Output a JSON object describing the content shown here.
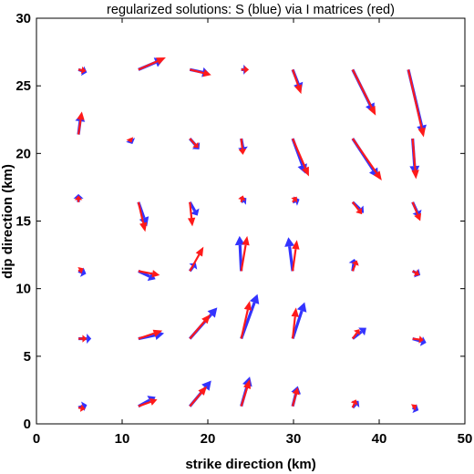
{
  "chart_data": {
    "type": "quiver",
    "title": "regularized solutions: S (blue) via I matrices (red)",
    "xlabel": "strike direction (km)",
    "ylabel": "dip direction (km)",
    "xlim": [
      0,
      50
    ],
    "ylim": [
      0,
      30
    ],
    "xticks": [
      "0",
      "10",
      "20",
      "30",
      "40",
      "50"
    ],
    "yticks": [
      "0",
      "5",
      "10",
      "15",
      "20",
      "25",
      "30"
    ],
    "grid": false,
    "series": [
      {
        "name": "S",
        "color": "#3333ff",
        "vectors": [
          {
            "x": 4.9,
            "y": 1.2,
            "u": 1.0,
            "v": 0.2
          },
          {
            "x": 11.9,
            "y": 1.3,
            "u": 2.0,
            "v": 0.7
          },
          {
            "x": 17.9,
            "y": 1.3,
            "u": 2.5,
            "v": 1.9
          },
          {
            "x": 23.9,
            "y": 1.3,
            "u": 1.0,
            "v": 2.2
          },
          {
            "x": 29.9,
            "y": 1.3,
            "u": 0.6,
            "v": 1.5
          },
          {
            "x": 36.9,
            "y": 1.2,
            "u": 0.7,
            "v": 0.5
          },
          {
            "x": 43.9,
            "y": 1.2,
            "u": 0.7,
            "v": -0.2
          },
          {
            "x": 4.9,
            "y": 6.3,
            "u": 1.5,
            "v": 0.0
          },
          {
            "x": 11.9,
            "y": 6.3,
            "u": 3.0,
            "v": 0.4
          },
          {
            "x": 17.9,
            "y": 6.3,
            "u": 3.2,
            "v": 2.3
          },
          {
            "x": 23.9,
            "y": 6.3,
            "u": 1.9,
            "v": 3.3
          },
          {
            "x": 29.9,
            "y": 6.3,
            "u": 1.4,
            "v": 2.7
          },
          {
            "x": 36.9,
            "y": 6.3,
            "u": 1.6,
            "v": 0.8
          },
          {
            "x": 43.9,
            "y": 6.3,
            "u": 1.6,
            "v": -0.3
          },
          {
            "x": 4.9,
            "y": 11.3,
            "u": 0.9,
            "v": -0.2
          },
          {
            "x": 11.9,
            "y": 11.3,
            "u": 2.0,
            "v": -0.6
          },
          {
            "x": 17.9,
            "y": 11.3,
            "u": 0.7,
            "v": 0.6
          },
          {
            "x": 23.9,
            "y": 11.3,
            "u": -0.2,
            "v": 2.6
          },
          {
            "x": 29.9,
            "y": 11.3,
            "u": -0.5,
            "v": 2.5
          },
          {
            "x": 36.9,
            "y": 11.3,
            "u": 0.2,
            "v": 0.9
          },
          {
            "x": 43.9,
            "y": 11.3,
            "u": 0.9,
            "v": -0.3
          },
          {
            "x": 4.9,
            "y": 16.4,
            "u": 0.0,
            "v": 0.6
          },
          {
            "x": 11.9,
            "y": 16.4,
            "u": 1.0,
            "v": -1.8
          },
          {
            "x": 17.9,
            "y": 16.4,
            "u": 0.9,
            "v": -1.0
          },
          {
            "x": 23.9,
            "y": 16.4,
            "u": 0.6,
            "v": 0.3
          },
          {
            "x": 29.9,
            "y": 16.4,
            "u": 0.8,
            "v": 0.2
          },
          {
            "x": 36.9,
            "y": 16.4,
            "u": 1.3,
            "v": -0.8
          },
          {
            "x": 43.9,
            "y": 16.4,
            "u": 0.8,
            "v": -1.1
          },
          {
            "x": 4.9,
            "y": 21.4,
            "u": 0.3,
            "v": 1.5
          },
          {
            "x": 10.9,
            "y": 21.1,
            "u": 0.3,
            "v": -0.4
          },
          {
            "x": 17.9,
            "y": 21.1,
            "u": 1.1,
            "v": -0.8
          },
          {
            "x": 23.9,
            "y": 21.1,
            "u": 0.3,
            "v": -1.0
          },
          {
            "x": 29.9,
            "y": 21.1,
            "u": 1.5,
            "v": -2.6
          },
          {
            "x": 36.9,
            "y": 21.1,
            "u": 3.0,
            "v": -2.9
          },
          {
            "x": 43.9,
            "y": 21.1,
            "u": 0.3,
            "v": -2.7
          },
          {
            "x": 4.9,
            "y": 26.2,
            "u": 1.0,
            "v": -0.2
          },
          {
            "x": 11.9,
            "y": 26.2,
            "u": 3.0,
            "v": 0.8
          },
          {
            "x": 17.9,
            "y": 26.2,
            "u": 2.3,
            "v": -0.3
          },
          {
            "x": 23.9,
            "y": 26.2,
            "u": 0.8,
            "v": 0.0
          },
          {
            "x": 29.9,
            "y": 26.2,
            "u": 1.0,
            "v": -1.6
          },
          {
            "x": 36.9,
            "y": 26.2,
            "u": 2.5,
            "v": -3.2
          },
          {
            "x": 43.4,
            "y": 26.2,
            "u": 1.8,
            "v": -4.8
          }
        ]
      },
      {
        "name": "I",
        "color": "#ff1a1a",
        "vectors": [
          {
            "x": 4.9,
            "y": 1.2,
            "u": 0.8,
            "v": -0.1
          },
          {
            "x": 11.9,
            "y": 1.3,
            "u": 2.2,
            "v": 0.5
          },
          {
            "x": 17.9,
            "y": 1.3,
            "u": 2.0,
            "v": 1.5
          },
          {
            "x": 23.9,
            "y": 1.3,
            "u": 1.0,
            "v": 2.0
          },
          {
            "x": 29.9,
            "y": 1.3,
            "u": 0.6,
            "v": 1.4
          },
          {
            "x": 36.9,
            "y": 1.2,
            "u": 0.4,
            "v": 0.6
          },
          {
            "x": 43.9,
            "y": 1.2,
            "u": 0.5,
            "v": 0.2
          },
          {
            "x": 4.9,
            "y": 6.3,
            "u": 1.0,
            "v": 0.0
          },
          {
            "x": 11.9,
            "y": 6.3,
            "u": 2.8,
            "v": 0.6
          },
          {
            "x": 17.9,
            "y": 6.3,
            "u": 2.4,
            "v": 1.8
          },
          {
            "x": 23.9,
            "y": 6.3,
            "u": 1.0,
            "v": 2.8
          },
          {
            "x": 29.9,
            "y": 6.3,
            "u": 0.4,
            "v": 2.3
          },
          {
            "x": 36.9,
            "y": 6.3,
            "u": 0.8,
            "v": 0.7
          },
          {
            "x": 43.9,
            "y": 6.3,
            "u": 1.3,
            "v": -0.1
          },
          {
            "x": 4.9,
            "y": 11.3,
            "u": 0.6,
            "v": 0.2
          },
          {
            "x": 11.9,
            "y": 11.3,
            "u": 2.5,
            "v": -0.3
          },
          {
            "x": 17.9,
            "y": 11.3,
            "u": 1.6,
            "v": 1.8
          },
          {
            "x": 23.9,
            "y": 11.3,
            "u": 0.7,
            "v": 2.6
          },
          {
            "x": 29.9,
            "y": 11.3,
            "u": 0.5,
            "v": 2.3
          },
          {
            "x": 36.9,
            "y": 11.3,
            "u": 0.5,
            "v": 0.8
          },
          {
            "x": 43.9,
            "y": 11.3,
            "u": 0.8,
            "v": -0.3
          },
          {
            "x": 4.9,
            "y": 16.4,
            "u": 0.0,
            "v": 0.5
          },
          {
            "x": 11.9,
            "y": 16.4,
            "u": 0.8,
            "v": -2.2
          },
          {
            "x": 17.9,
            "y": 16.4,
            "u": 0.3,
            "v": -1.8
          },
          {
            "x": 23.9,
            "y": 16.4,
            "u": 0.2,
            "v": 0.5
          },
          {
            "x": 29.9,
            "y": 16.4,
            "u": 0.5,
            "v": 0.4
          },
          {
            "x": 36.9,
            "y": 16.4,
            "u": 1.1,
            "v": -0.9
          },
          {
            "x": 43.9,
            "y": 16.4,
            "u": 0.9,
            "v": -1.4
          },
          {
            "x": 4.9,
            "y": 21.4,
            "u": 0.4,
            "v": 1.7
          },
          {
            "x": 10.9,
            "y": 21.1,
            "u": 0.2,
            "v": -0.3
          },
          {
            "x": 17.9,
            "y": 21.1,
            "u": 1.0,
            "v": -0.7
          },
          {
            "x": 23.9,
            "y": 21.1,
            "u": 0.2,
            "v": -1.2
          },
          {
            "x": 29.9,
            "y": 21.1,
            "u": 1.9,
            "v": -2.8
          },
          {
            "x": 36.9,
            "y": 21.1,
            "u": 3.4,
            "v": -3.1
          },
          {
            "x": 43.9,
            "y": 21.1,
            "u": 0.4,
            "v": -3.0
          },
          {
            "x": 4.9,
            "y": 26.2,
            "u": 0.9,
            "v": -0.1
          },
          {
            "x": 11.9,
            "y": 26.2,
            "u": 3.2,
            "v": 0.9
          },
          {
            "x": 17.9,
            "y": 26.2,
            "u": 2.5,
            "v": -0.4
          },
          {
            "x": 23.9,
            "y": 26.2,
            "u": 0.9,
            "v": 0.0
          },
          {
            "x": 29.9,
            "y": 26.2,
            "u": 1.0,
            "v": -1.8
          },
          {
            "x": 36.9,
            "y": 26.2,
            "u": 2.7,
            "v": -3.4
          },
          {
            "x": 43.4,
            "y": 26.2,
            "u": 1.8,
            "v": -5.0
          }
        ]
      }
    ]
  }
}
